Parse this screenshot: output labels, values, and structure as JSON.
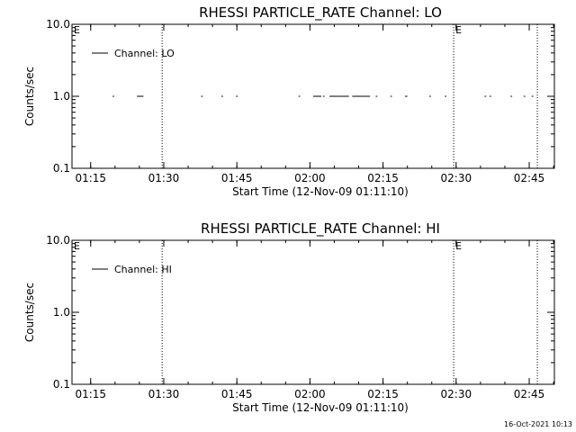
{
  "chart_data": [
    {
      "type": "line",
      "title": "RHESSI PARTICLE_RATE Channel: LO",
      "xlabel": "Start Time (12-Nov-09 01:11:10)",
      "ylabel": "Counts/sec",
      "y_scale": "log",
      "ylim": [
        0.1,
        10.0
      ],
      "y_ticks": [
        "0.1",
        "1.0",
        "10.0"
      ],
      "x_ticks": [
        "01:15",
        "01:30",
        "01:45",
        "02:00",
        "02:15",
        "02:30",
        "02:45"
      ],
      "xlim": [
        "01:11:10",
        "02:50:10"
      ],
      "grid": false,
      "legend_position": "top-left",
      "series": [
        {
          "name": "Channel: LO",
          "segments": [
            [
              "01:19:30",
              "01:19:50"
            ],
            [
              "01:24:30",
              "01:25:50"
            ],
            [
              "01:37:40",
              "01:38:00"
            ],
            [
              "01:41:50",
              "01:42:10"
            ],
            [
              "01:44:50",
              "01:45:10"
            ],
            [
              "01:57:40",
              "01:58:00"
            ],
            [
              "02:00:40",
              "02:02:20"
            ],
            [
              "02:02:40",
              "02:03:00"
            ],
            [
              "02:04:00",
              "02:08:00"
            ],
            [
              "02:08:40",
              "02:12:20"
            ],
            [
              "02:13:30",
              "02:13:50"
            ],
            [
              "02:16:30",
              "02:16:50"
            ],
            [
              "02:19:30",
              "02:20:00"
            ],
            [
              "02:24:30",
              "02:24:50"
            ],
            [
              "02:27:40",
              "02:28:00"
            ],
            [
              "02:35:50",
              "02:36:10"
            ],
            [
              "02:36:50",
              "02:37:10"
            ],
            [
              "02:41:10",
              "02:41:30"
            ],
            [
              "02:43:50",
              "02:44:10"
            ],
            [
              "02:45:30",
              "02:45:50"
            ]
          ],
          "value": 1.0
        }
      ],
      "vertical_markers": [
        "01:29:40",
        "02:29:30",
        "02:46:40"
      ],
      "marker_labels": [
        {
          "at": "01:11:10",
          "text": "E"
        },
        {
          "at": "02:29:30",
          "text": "E"
        }
      ]
    },
    {
      "type": "line",
      "title": "RHESSI PARTICLE_RATE Channel: HI",
      "xlabel": "Start Time (12-Nov-09 01:11:10)",
      "ylabel": "Counts/sec",
      "y_scale": "log",
      "ylim": [
        0.1,
        10.0
      ],
      "y_ticks": [
        "0.1",
        "1.0",
        "10.0"
      ],
      "x_ticks": [
        "01:15",
        "01:30",
        "01:45",
        "02:00",
        "02:15",
        "02:30",
        "02:45"
      ],
      "xlim": [
        "01:11:10",
        "02:50:10"
      ],
      "grid": false,
      "legend_position": "top-left",
      "series": [
        {
          "name": "Channel: HI",
          "segments": [],
          "value": null
        }
      ],
      "vertical_markers": [
        "01:29:40",
        "02:29:30",
        "02:46:40"
      ],
      "marker_labels": [
        {
          "at": "01:11:10",
          "text": "E"
        },
        {
          "at": "02:29:30",
          "text": "E"
        }
      ]
    }
  ],
  "footer": {
    "timestamp": "16-Oct-2021 10:13"
  }
}
